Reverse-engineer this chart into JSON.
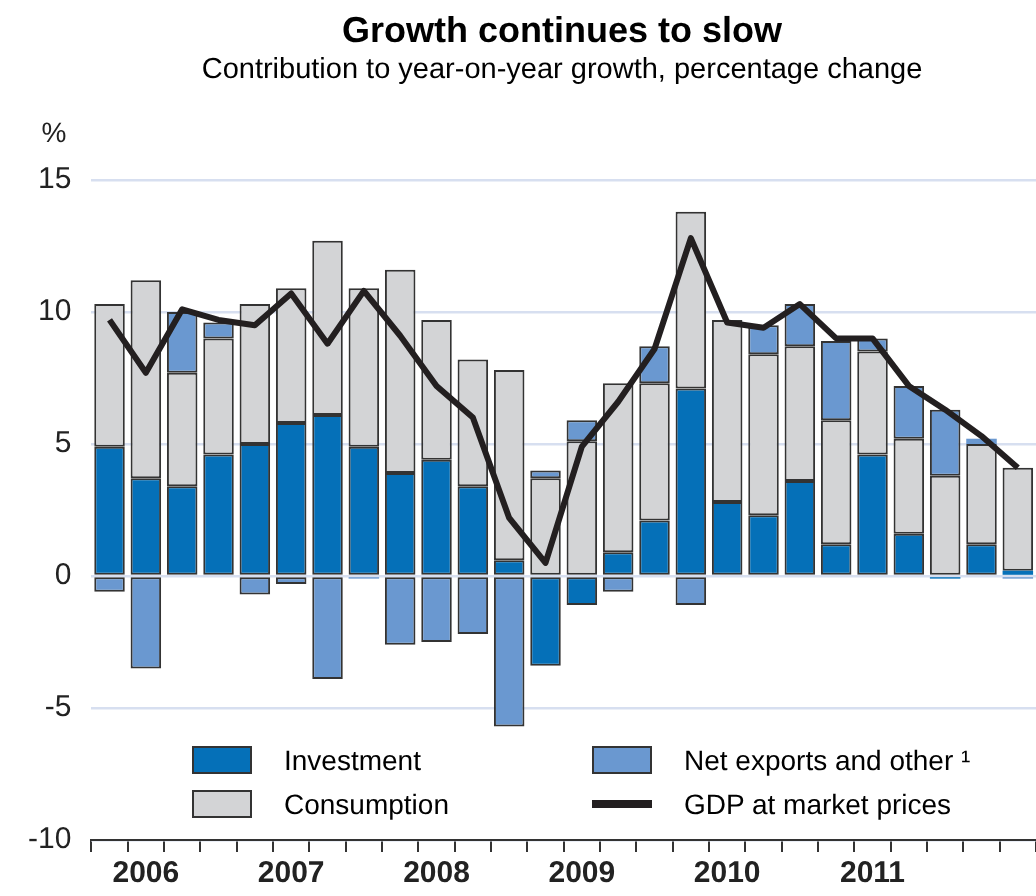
{
  "chart_data": {
    "type": "bar",
    "title": "Growth continues to slow",
    "subtitle": "Contribution to year-on-year growth, percentage change",
    "ylabel": "%",
    "categories": [
      null,
      "2006",
      null,
      null,
      null,
      "2007",
      null,
      null,
      null,
      "2008",
      null,
      null,
      null,
      "2009",
      null,
      null,
      null,
      "2010",
      null,
      null,
      null,
      "2011",
      null,
      null,
      null,
      null
    ],
    "stacked": true,
    "ylim": [
      -10,
      15
    ],
    "yticks": [
      -10,
      -5,
      0,
      5,
      10,
      15
    ],
    "grid": "y",
    "legend": "bottom",
    "marker": "none",
    "line_style": "solid",
    "series": [
      {
        "name": "Investment",
        "color": "#0570b8",
        "values": [
          4.9,
          3.7,
          3.4,
          4.6,
          5.0,
          5.8,
          6.1,
          4.9,
          3.9,
          4.4,
          3.4,
          0.6,
          -3.4,
          -1.1,
          0.9,
          2.1,
          7.1,
          2.8,
          2.3,
          3.6,
          1.2,
          4.6,
          1.6,
          -0.1,
          1.2,
          0.2
        ]
      },
      {
        "name": "Consumption",
        "color": "#d3d4d6",
        "values": [
          5.4,
          7.5,
          4.3,
          4.4,
          5.3,
          5.1,
          6.6,
          6.0,
          7.7,
          5.3,
          4.8,
          7.2,
          3.7,
          5.1,
          6.4,
          5.2,
          6.7,
          6.9,
          6.1,
          5.1,
          4.7,
          3.9,
          3.6,
          3.8,
          3.8,
          3.9
        ]
      },
      {
        "name": "Net exports and other ¹",
        "color": "#6a98d0",
        "values": [
          -0.6,
          -3.5,
          2.3,
          0.6,
          -0.7,
          -0.3,
          -3.9,
          -0.1,
          -2.6,
          -2.5,
          -2.2,
          -5.7,
          0.3,
          0.8,
          -0.6,
          1.4,
          -1.1,
          0,
          1.1,
          1.6,
          3.0,
          0.5,
          2.0,
          2.5,
          0.2,
          -0.1
        ]
      },
      {
        "name": "GDP at market prices",
        "type": "line",
        "color": "#231f20",
        "values": [
          9.7,
          7.7,
          10.1,
          9.7,
          9.5,
          10.7,
          8.8,
          10.8,
          9.1,
          7.2,
          6.0,
          2.2,
          0.5,
          4.9,
          6.6,
          8.6,
          12.8,
          9.6,
          9.4,
          10.3,
          9.0,
          9.0,
          7.2,
          6.3,
          5.3,
          4.1
        ]
      }
    ]
  }
}
